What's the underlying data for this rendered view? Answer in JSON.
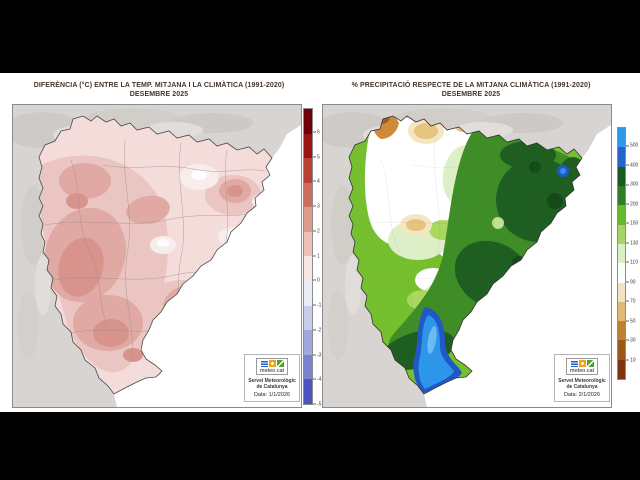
{
  "letterbox_color": "#000000",
  "panels": [
    {
      "title_line1": "DIFERÈNCIA (°C) ENTRE LA TEMP. MITJANA I LA CLIMÀTICA (1991-2020)",
      "title_line2": "DESEMBRE 2025",
      "colorbar": {
        "colors": [
          "#6e0008",
          "#9a1511",
          "#b94237",
          "#cc6d5e",
          "#dd9a8d",
          "#ecc1b8",
          "#f7e6e2",
          "#e9ecf5",
          "#c7cdea",
          "#a0a9da",
          "#7a83cd",
          "#4f55bf"
        ],
        "ticks": [
          "6",
          "5",
          "4",
          "3",
          "2",
          "1",
          "0",
          "-1",
          "-2",
          "-3",
          "-4",
          "-5"
        ]
      },
      "logo": {
        "brand": "meteo.cat",
        "org_line1": "Servei Meteorològic",
        "org_line2": "de Catalunya",
        "date": "Data: 1/1/2026"
      }
    },
    {
      "title_line1": "% PRECIPITACIÓ RESPECTE DE LA MITJANA CLIMÀTICA (1991-2020)",
      "title_line2": "DESEMBRE 2025",
      "colorbar": {
        "colors": [
          "#2f99e8",
          "#2363cb",
          "#1d5a21",
          "#2f7d24",
          "#66b82c",
          "#a6d46a",
          "#dbeec4",
          "#ffffff",
          "#f2e4c0",
          "#dfba76",
          "#c08030",
          "#9c5718",
          "#7e340e"
        ],
        "ticks": [
          "500",
          "400",
          "300",
          "200",
          "150",
          "130",
          "110",
          "90",
          "70",
          "50",
          "30",
          "10"
        ]
      },
      "logo": {
        "brand": "meteo.cat",
        "org_line1": "Servei Meteorològic",
        "org_line2": "de Catalunya",
        "date": "Data: 2/1/2026"
      }
    }
  ]
}
